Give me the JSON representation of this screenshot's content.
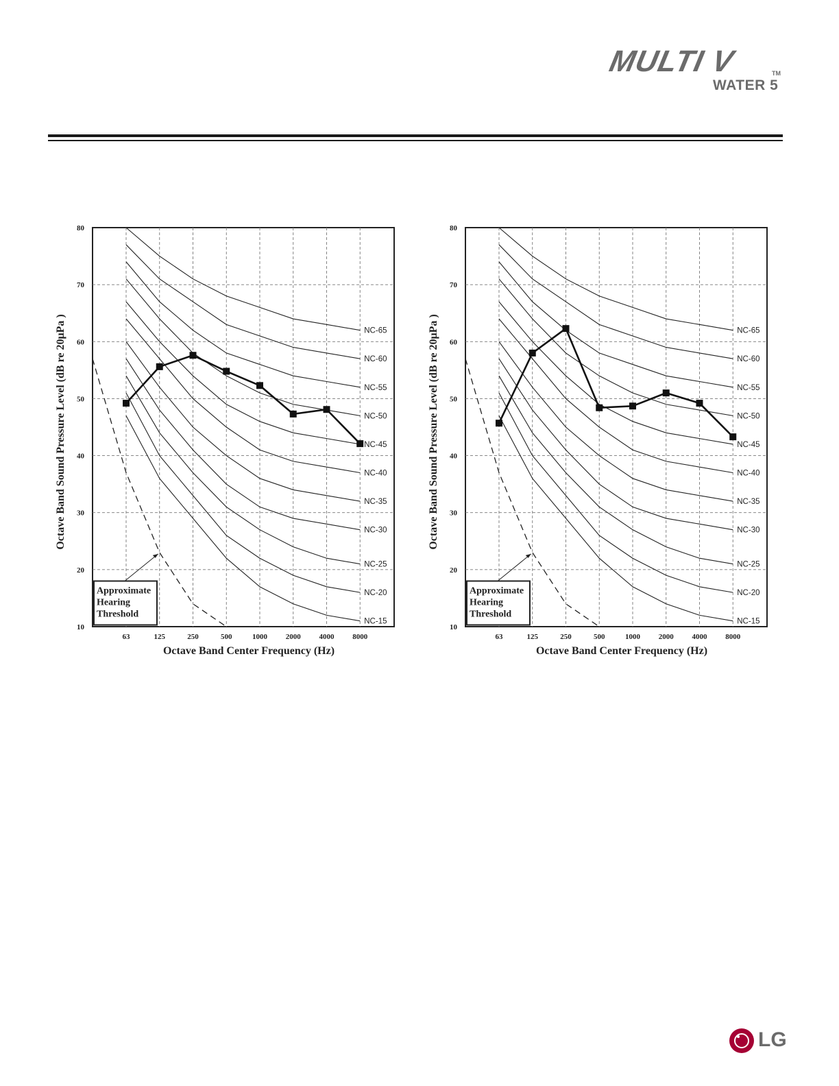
{
  "header": {
    "brand_main": "MULTI V",
    "brand_tm": "TM",
    "brand_sub": "WATER 5"
  },
  "footer": {
    "logo_text": "LG"
  },
  "chart_data": [
    {
      "type": "line",
      "xlabel": "Octave Band Center Frequency (Hz)",
      "ylabel": "Octave Band Sound Pressure Level (dB re 20μPa )",
      "categories": [
        "63",
        "125",
        "250",
        "500",
        "1000",
        "2000",
        "4000",
        "8000"
      ],
      "ylim": [
        10,
        80
      ],
      "yticks": [
        10,
        20,
        30,
        40,
        50,
        60,
        70,
        80
      ],
      "grid": true,
      "series": [
        {
          "values": [
            49.2,
            55.6,
            57.6,
            54.8,
            52.3,
            47.3,
            48.1,
            42.1
          ]
        }
      ],
      "nc_curves": [
        {
          "name": "NC-65",
          "values": [
            80,
            75,
            71,
            68,
            66,
            64,
            63,
            62
          ]
        },
        {
          "name": "NC-60",
          "values": [
            77,
            71,
            67,
            63,
            61,
            59,
            58,
            57
          ]
        },
        {
          "name": "NC-55",
          "values": [
            74,
            67,
            62,
            58,
            56,
            54,
            53,
            52
          ]
        },
        {
          "name": "NC-50",
          "values": [
            71,
            64,
            58,
            54,
            51,
            49,
            48,
            47
          ]
        },
        {
          "name": "NC-45",
          "values": [
            67,
            60,
            54,
            49,
            46,
            44,
            43,
            42
          ]
        },
        {
          "name": "NC-40",
          "values": [
            64,
            57,
            50,
            45,
            41,
            39,
            38,
            37
          ]
        },
        {
          "name": "NC-35",
          "values": [
            60,
            52,
            45,
            40,
            36,
            34,
            33,
            32
          ]
        },
        {
          "name": "NC-30",
          "values": [
            57,
            48,
            41,
            35,
            31,
            29,
            28,
            27
          ]
        },
        {
          "name": "NC-25",
          "values": [
            54,
            44,
            37,
            31,
            27,
            24,
            22,
            21
          ]
        },
        {
          "name": "NC-20",
          "values": [
            51,
            40,
            33,
            26,
            22,
            19,
            17,
            16
          ]
        },
        {
          "name": "NC-15",
          "values": [
            47,
            36,
            29,
            22,
            17,
            14,
            12,
            11
          ]
        }
      ],
      "threshold": {
        "values": [
          37,
          23,
          14,
          10
        ]
      },
      "annotation": {
        "lines": [
          "Approximate",
          "Hearing",
          "Threshold"
        ]
      }
    },
    {
      "type": "line",
      "xlabel": "Octave Band Center Frequency (Hz)",
      "ylabel": "Octave Band Sound Pressure Level (dB re 20μPa )",
      "categories": [
        "63",
        "125",
        "250",
        "500",
        "1000",
        "2000",
        "4000",
        "8000"
      ],
      "ylim": [
        10,
        80
      ],
      "yticks": [
        10,
        20,
        30,
        40,
        50,
        60,
        70,
        80
      ],
      "grid": true,
      "series": [
        {
          "values": [
            45.7,
            58.0,
            62.3,
            48.4,
            48.7,
            51.0,
            49.2,
            43.3
          ]
        }
      ],
      "nc_curves": [
        {
          "name": "NC-65",
          "values": [
            80,
            75,
            71,
            68,
            66,
            64,
            63,
            62
          ]
        },
        {
          "name": "NC-60",
          "values": [
            77,
            71,
            67,
            63,
            61,
            59,
            58,
            57
          ]
        },
        {
          "name": "NC-55",
          "values": [
            74,
            67,
            62,
            58,
            56,
            54,
            53,
            52
          ]
        },
        {
          "name": "NC-50",
          "values": [
            71,
            64,
            58,
            54,
            51,
            49,
            48,
            47
          ]
        },
        {
          "name": "NC-45",
          "values": [
            67,
            60,
            54,
            49,
            46,
            44,
            43,
            42
          ]
        },
        {
          "name": "NC-40",
          "values": [
            64,
            57,
            50,
            45,
            41,
            39,
            38,
            37
          ]
        },
        {
          "name": "NC-35",
          "values": [
            60,
            52,
            45,
            40,
            36,
            34,
            33,
            32
          ]
        },
        {
          "name": "NC-30",
          "values": [
            57,
            48,
            41,
            35,
            31,
            29,
            28,
            27
          ]
        },
        {
          "name": "NC-25",
          "values": [
            54,
            44,
            37,
            31,
            27,
            24,
            22,
            21
          ]
        },
        {
          "name": "NC-20",
          "values": [
            51,
            40,
            33,
            26,
            22,
            19,
            17,
            16
          ]
        },
        {
          "name": "NC-15",
          "values": [
            47,
            36,
            29,
            22,
            17,
            14,
            12,
            11
          ]
        }
      ],
      "threshold": {
        "values": [
          37,
          23,
          14,
          10
        ]
      },
      "annotation": {
        "lines": [
          "Approximate",
          "Hearing",
          "Threshold"
        ]
      }
    }
  ]
}
